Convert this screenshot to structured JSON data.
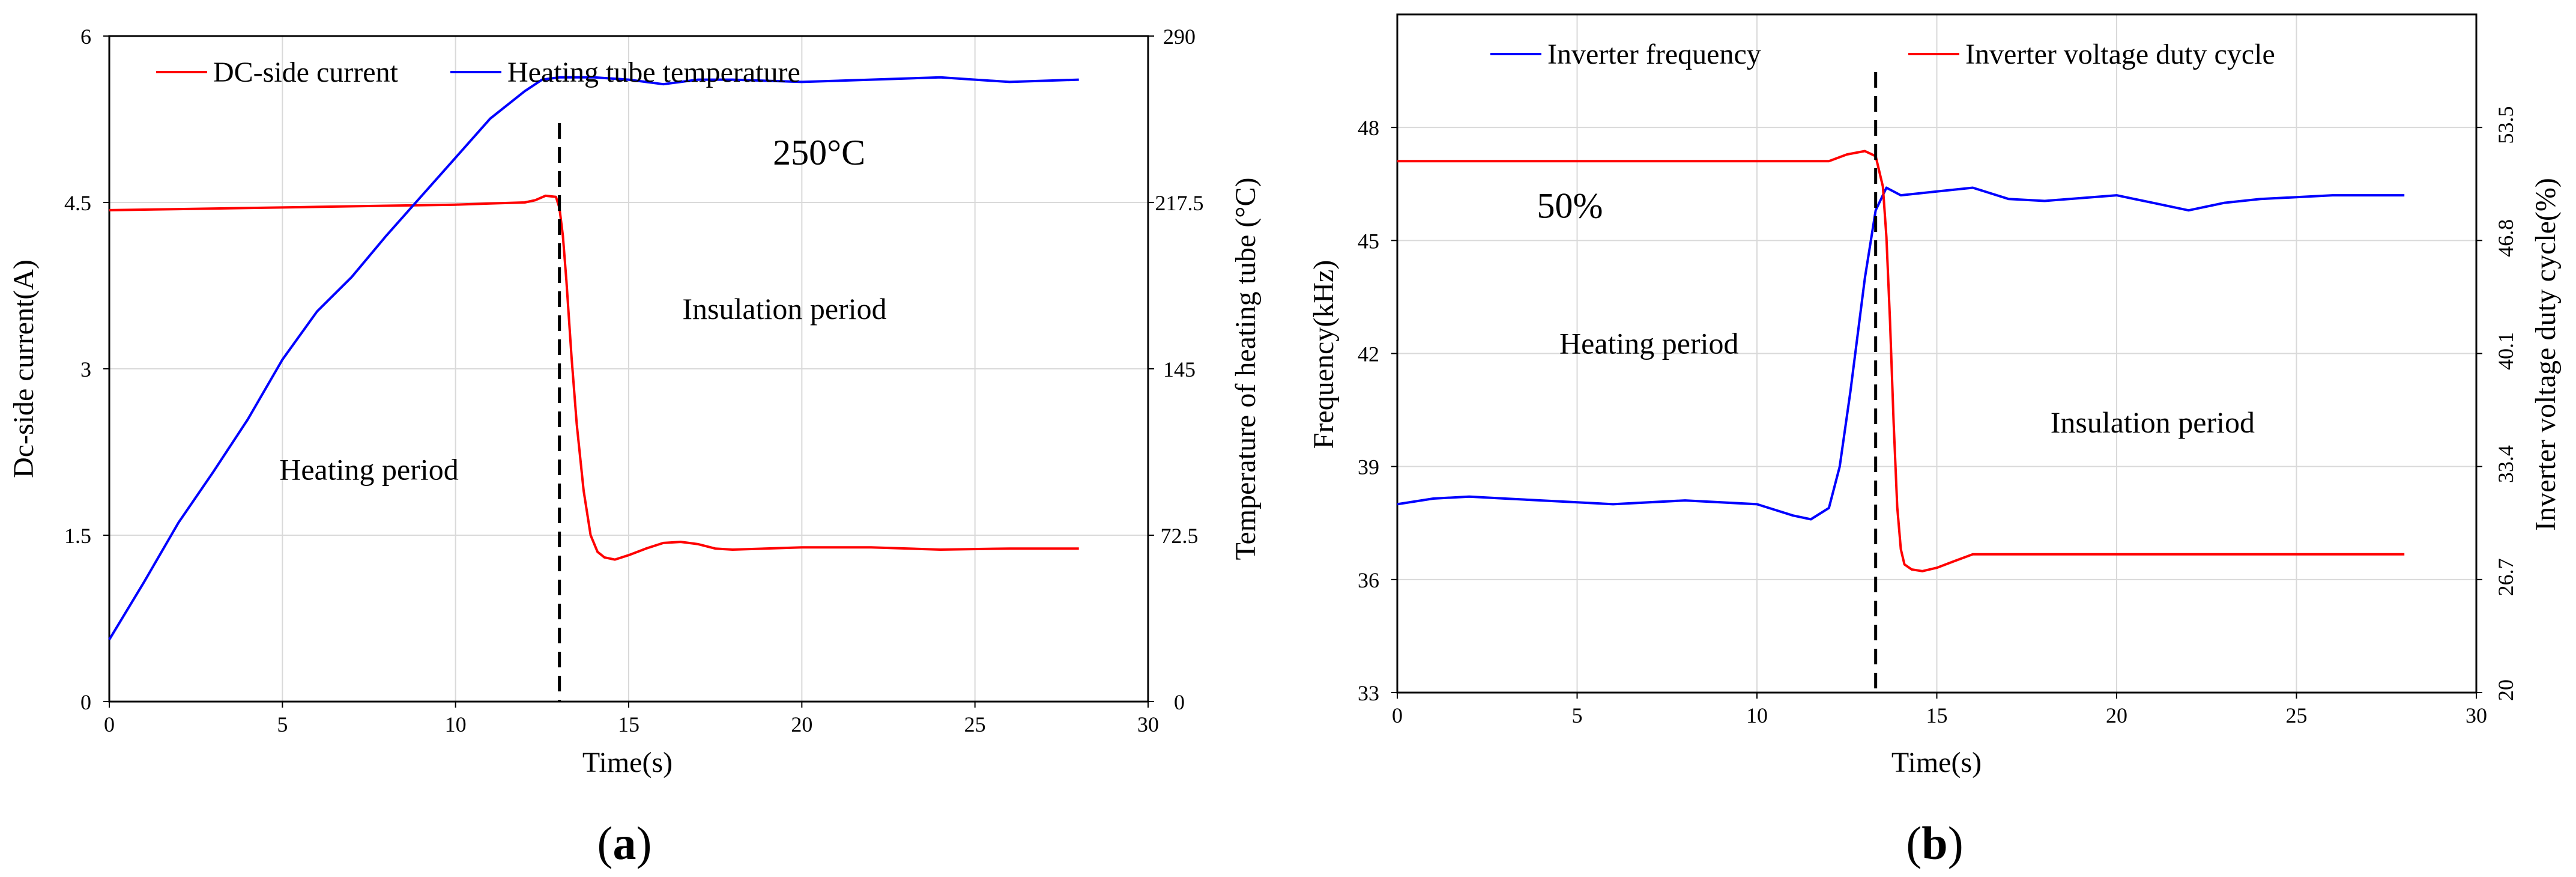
{
  "chart_data": [
    {
      "panel": "(a)",
      "panel_letter": "a",
      "type": "line",
      "xlabel": "Time(s)",
      "ylabel_left": "Dc-side current(A)",
      "ylabel_right": "Temperature of heating tube (°C)",
      "xlim": [
        0,
        30
      ],
      "xticks": [
        "0",
        "5",
        "10",
        "15",
        "20",
        "25",
        "30"
      ],
      "ylim_left": [
        0,
        6
      ],
      "yticks_left": [
        "0",
        "1.5",
        "3",
        "4.5",
        "6"
      ],
      "ylim_right": [
        0,
        290
      ],
      "yticks_right": [
        "0",
        "72.5",
        "145",
        "217.5",
        "290"
      ],
      "grid": true,
      "legend_position": "top-left",
      "series": [
        {
          "name": "DC-side current",
          "axis": "left",
          "color": "#ff0000",
          "x": [
            0,
            2,
            4,
            6,
            8,
            10,
            11,
            12,
            12.3,
            12.6,
            12.9,
            13.0,
            13.1,
            13.2,
            13.35,
            13.5,
            13.7,
            13.9,
            14.1,
            14.3,
            14.6,
            15,
            15.5,
            16,
            16.5,
            17,
            17.5,
            18,
            20,
            22,
            24,
            26,
            28
          ],
          "y": [
            4.43,
            4.44,
            4.45,
            4.46,
            4.47,
            4.48,
            4.49,
            4.5,
            4.52,
            4.56,
            4.55,
            4.45,
            4.2,
            3.8,
            3.1,
            2.5,
            1.9,
            1.5,
            1.35,
            1.3,
            1.28,
            1.32,
            1.38,
            1.43,
            1.44,
            1.42,
            1.38,
            1.37,
            1.39,
            1.39,
            1.37,
            1.38,
            1.38
          ]
        },
        {
          "name": "Heating tube temperature",
          "axis": "right",
          "color": "#0000ff",
          "x": [
            0,
            1,
            2,
            3,
            4,
            5,
            6,
            7,
            8,
            9,
            10,
            11,
            12,
            12.5,
            13,
            13.5,
            14,
            15,
            16,
            16.5,
            17,
            18,
            20,
            22,
            24,
            26,
            28
          ],
          "y": [
            27,
            52,
            78,
            100,
            123,
            149,
            170,
            185,
            203,
            220,
            237,
            254,
            266,
            271,
            272,
            272,
            272,
            271,
            269,
            270,
            271,
            271,
            270,
            271,
            272,
            270,
            271
          ]
        }
      ],
      "vline_x": 13.0,
      "annotations": [
        {
          "text": "250°C",
          "x": 20.5,
          "y_right": 234
        },
        {
          "text": "Insulation period",
          "x": 19.5,
          "y_left": 3.45
        },
        {
          "text": "Heating period",
          "x": 7.5,
          "y_left": 2.0
        }
      ]
    },
    {
      "panel": "(b)",
      "panel_letter": "b",
      "type": "line",
      "xlabel": "Time(s)",
      "ylabel_left": "Frequency(kHz)",
      "ylabel_right": "Inverter voltage duty cycle(%)",
      "xlim": [
        0,
        30
      ],
      "xticks": [
        "0",
        "5",
        "10",
        "15",
        "20",
        "25",
        "30"
      ],
      "ylim_left": [
        33,
        51
      ],
      "yticks_left": [
        "33",
        "36",
        "39",
        "42",
        "45",
        "48"
      ],
      "ylim_right": [
        20,
        60.2
      ],
      "yticks_right": [
        "20",
        "26.7",
        "33.4",
        "40.1",
        "46.8",
        "53.5"
      ],
      "grid": true,
      "legend_position": "top",
      "series": [
        {
          "name": "Inverter frequency",
          "axis": "left",
          "color": "#0000ff",
          "x": [
            0,
            1,
            2,
            3,
            4,
            6,
            8,
            10,
            11,
            11.5,
            12,
            12.3,
            12.6,
            13,
            13.3,
            13.6,
            14,
            15,
            16,
            17,
            18,
            20,
            21,
            22,
            23,
            24,
            26,
            28
          ],
          "y": [
            38.0,
            38.15,
            38.2,
            38.15,
            38.1,
            38.0,
            38.1,
            38.0,
            37.7,
            37.6,
            37.9,
            39.0,
            41.0,
            44.0,
            45.8,
            46.4,
            46.2,
            46.3,
            46.4,
            46.1,
            46.05,
            46.2,
            46.0,
            45.8,
            46.0,
            46.1,
            46.2,
            46.2
          ]
        },
        {
          "name": "Inverter voltage duty cycle",
          "axis": "right",
          "color": "#ff0000",
          "x": [
            0,
            6,
            12,
            12.5,
            13,
            13.3,
            13.5,
            13.6,
            13.7,
            13.8,
            13.9,
            14.0,
            14.1,
            14.3,
            14.6,
            15,
            15.5,
            16,
            20,
            24,
            28
          ],
          "y": [
            51.5,
            51.5,
            51.5,
            51.9,
            52.1,
            51.8,
            50.0,
            47.0,
            42.0,
            36.0,
            31.0,
            28.5,
            27.6,
            27.3,
            27.2,
            27.4,
            27.8,
            28.2,
            28.2,
            28.2,
            28.2
          ]
        }
      ],
      "vline_x": 13.3,
      "annotations": [
        {
          "text": "50%",
          "x": 4.8,
          "y_left": 45.6
        },
        {
          "text": "Heating period",
          "x": 7.0,
          "y_left": 42.0
        },
        {
          "text": "Insulation period",
          "x": 21.0,
          "y_left": 39.9
        }
      ]
    }
  ]
}
